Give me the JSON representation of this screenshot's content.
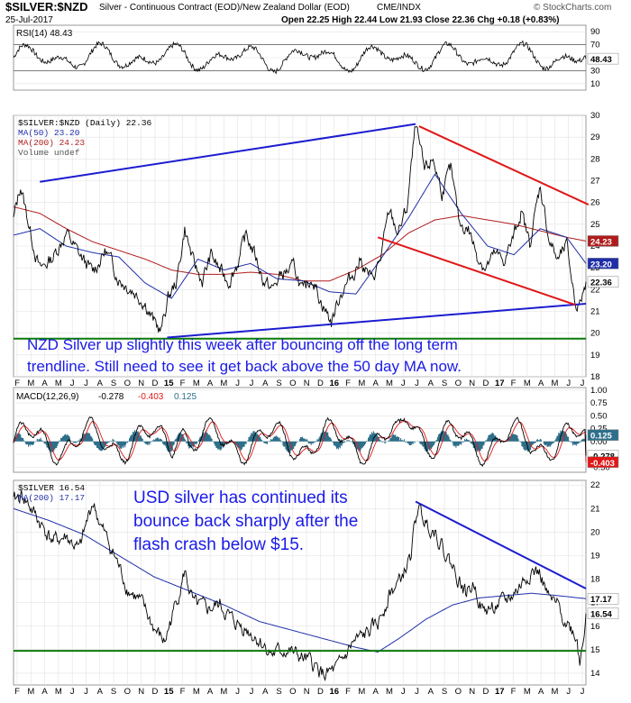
{
  "header": {
    "symbol_title": "$SILVER:$NZD",
    "description": "Silver - Continuous Contract (EOD)/New Zealand Dollar (EOD)",
    "exchange": "CME/INDX",
    "date": "25-Jul-2017",
    "ohlc": "Open 22.25  High 22.44  Low 21.93  Close 22.36  Chg +0.18 (+0.83%)",
    "attribution": "© StockCharts.com"
  },
  "colors": {
    "price": "#000000",
    "ma50": "#1f2fa8",
    "ma200": "#b01c1c",
    "trend_blue": "#1c1cd0",
    "trend_red": "#e01818",
    "support_green": "#0a7a0a",
    "histogram": "#2e6f8a",
    "annotation": "#1a1ae8"
  },
  "chart_data": [
    {
      "type": "line",
      "panel": "rsi",
      "legend": "RSI(14) 48.43",
      "y_ticks": [
        10,
        30,
        50,
        70,
        90
      ],
      "ylim": [
        0,
        100
      ],
      "reference_lines": [
        30,
        70
      ],
      "last_value": 48.43,
      "last_label": "48.43"
    },
    {
      "type": "line",
      "panel": "silver_nzd",
      "legend": [
        "$SILVER:$NZD (Daily) 22.36",
        "MA(50) 23.20",
        "MA(200) 24.23",
        "Volume undef"
      ],
      "ylim": [
        18,
        30
      ],
      "y_ticks": [
        18,
        19,
        20,
        21,
        22,
        23,
        24,
        25,
        26,
        27,
        28,
        29,
        30
      ],
      "x_ticks": [
        "F",
        "M",
        "A",
        "M",
        "J",
        "J",
        "A",
        "S",
        "O",
        "N",
        "D",
        "15",
        "F",
        "M",
        "A",
        "M",
        "J",
        "J",
        "A",
        "S",
        "O",
        "N",
        "D",
        "16",
        "F",
        "M",
        "A",
        "M",
        "J",
        "J",
        "A",
        "S",
        "O",
        "N",
        "D",
        "17",
        "F",
        "M",
        "A",
        "M",
        "J",
        "J"
      ],
      "series": [
        {
          "name": "$SILVER:$NZD",
          "points": [
            [
              0,
              25.2
            ],
            [
              8,
              26.8
            ],
            [
              20,
              24.5
            ],
            [
              30,
              22.9
            ],
            [
              45,
              23.5
            ],
            [
              60,
              24.6
            ],
            [
              75,
              23.6
            ],
            [
              90,
              22.8
            ],
            [
              105,
              23.8
            ],
            [
              120,
              22.5
            ],
            [
              135,
              22.0
            ],
            [
              150,
              21.4
            ],
            [
              160,
              20.5
            ],
            [
              168,
              20.1
            ],
            [
              176,
              21.6
            ],
            [
              186,
              22.4
            ],
            [
              195,
              24.8
            ],
            [
              205,
              23.2
            ],
            [
              215,
              22.4
            ],
            [
              225,
              23.6
            ],
            [
              235,
              22.9
            ],
            [
              245,
              22.4
            ],
            [
              255,
              23.2
            ],
            [
              265,
              24.5
            ],
            [
              275,
              23.6
            ],
            [
              285,
              22.4
            ],
            [
              295,
              22.0
            ],
            [
              305,
              22.7
            ],
            [
              320,
              23.0
            ],
            [
              330,
              21.8
            ],
            [
              340,
              22.6
            ],
            [
              350,
              21.5
            ],
            [
              362,
              20.5
            ],
            [
              372,
              21.8
            ],
            [
              385,
              22.6
            ],
            [
              395,
              23.4
            ],
            [
              408,
              22.4
            ],
            [
              418,
              23.4
            ],
            [
              428,
              25.6
            ],
            [
              438,
              24.6
            ],
            [
              448,
              25.7
            ],
            [
              458,
              29.5
            ],
            [
              468,
              27.4
            ],
            [
              478,
              28.0
            ],
            [
              488,
              26.5
            ],
            [
              498,
              27.5
            ],
            [
              508,
              25.0
            ],
            [
              518,
              24.8
            ],
            [
              528,
              23.6
            ],
            [
              538,
              23.0
            ],
            [
              548,
              23.6
            ],
            [
              558,
              23.3
            ],
            [
              568,
              24.2
            ],
            [
              578,
              25.6
            ],
            [
              588,
              24.1
            ],
            [
              600,
              26.8
            ],
            [
              610,
              24.3
            ],
            [
              620,
              23.3
            ],
            [
              630,
              24.0
            ],
            [
              640,
              21.4
            ],
            [
              645,
              21.3
            ],
            [
              652,
              22.36
            ]
          ]
        },
        {
          "name": "MA(50)",
          "points": [
            [
              0,
              24.5
            ],
            [
              30,
              24.8
            ],
            [
              60,
              24.0
            ],
            [
              90,
              23.7
            ],
            [
              120,
              23.5
            ],
            [
              150,
              22.3
            ],
            [
              180,
              21.6
            ],
            [
              210,
              23.4
            ],
            [
              240,
              22.9
            ],
            [
              270,
              23.2
            ],
            [
              300,
              22.5
            ],
            [
              330,
              22.4
            ],
            [
              360,
              21.9
            ],
            [
              390,
              21.8
            ],
            [
              420,
              23.5
            ],
            [
              450,
              25.3
            ],
            [
              480,
              27.3
            ],
            [
              510,
              25.5
            ],
            [
              540,
              24.0
            ],
            [
              570,
              23.6
            ],
            [
              600,
              24.8
            ],
            [
              630,
              24.4
            ],
            [
              652,
              23.2
            ]
          ]
        },
        {
          "name": "MA(200)",
          "points": [
            [
              0,
              25.8
            ],
            [
              30,
              25.5
            ],
            [
              60,
              24.8
            ],
            [
              90,
              24.2
            ],
            [
              120,
              23.8
            ],
            [
              150,
              23.4
            ],
            [
              180,
              22.9
            ],
            [
              210,
              22.7
            ],
            [
              240,
              22.7
            ],
            [
              270,
              22.8
            ],
            [
              300,
              22.7
            ],
            [
              330,
              22.4
            ],
            [
              360,
              22.4
            ],
            [
              390,
              22.9
            ],
            [
              420,
              23.6
            ],
            [
              450,
              24.6
            ],
            [
              480,
              25.2
            ],
            [
              510,
              25.4
            ],
            [
              540,
              25.2
            ],
            [
              570,
              25.0
            ],
            [
              600,
              24.7
            ],
            [
              630,
              24.4
            ],
            [
              652,
              24.23
            ]
          ]
        }
      ],
      "last_labels": [
        "24.23",
        "23.20",
        "22.36"
      ],
      "trendlines": [
        {
          "color": "blue",
          "from": [
            30,
            26.95
          ],
          "to": [
            458,
            29.6
          ]
        },
        {
          "color": "blue",
          "from": [
            175,
            19.8
          ],
          "to": [
            652,
            21.35
          ]
        },
        {
          "color": "red",
          "from": [
            462,
            29.5
          ],
          "to": [
            655,
            25.9
          ]
        },
        {
          "color": "red",
          "from": [
            415,
            24.4
          ],
          "to": [
            640,
            21.3
          ]
        }
      ],
      "horizontal_support": 19.75,
      "annotation": [
        "NZD Silver up slightly this week after bouncing off the long term",
        "trendline. Still need to see it get back above the 50 day MA now."
      ]
    },
    {
      "type": "line",
      "panel": "macd",
      "legend": [
        "MACD(12,26,9)",
        "-0.278",
        "-0.403",
        "0.125"
      ],
      "y_ticks": [
        1.0,
        0.75,
        0.5,
        0.25,
        0.0,
        -0.25,
        -0.5
      ],
      "y_tick_labels": [
        "1.00",
        "0.75",
        "0.50",
        "0.25",
        "0.00",
        "-0.25",
        "-0.50"
      ],
      "ylim": [
        -0.6,
        1.05
      ],
      "last_labels": [
        "0.125",
        "-0.278",
        "-0.403"
      ]
    },
    {
      "type": "line",
      "panel": "silver_usd",
      "legend": [
        "$SILVER 16.54",
        "MA(200) 17.17"
      ],
      "ylim": [
        13.5,
        22.2
      ],
      "y_ticks": [
        14,
        15,
        16,
        17,
        18,
        19,
        20,
        21,
        22
      ],
      "x_ticks": [
        "F",
        "M",
        "A",
        "M",
        "J",
        "J",
        "A",
        "S",
        "O",
        "N",
        "D",
        "15",
        "F",
        "M",
        "A",
        "M",
        "J",
        "J",
        "A",
        "S",
        "O",
        "N",
        "D",
        "16",
        "F",
        "M",
        "A",
        "M",
        "J",
        "J",
        "A",
        "S",
        "O",
        "N",
        "D",
        "17",
        "F",
        "M",
        "A",
        "M",
        "J",
        "J"
      ],
      "series": [
        {
          "name": "$SILVER",
          "points": [
            [
              0,
              21.3
            ],
            [
              10,
              21.6
            ],
            [
              20,
              21.0
            ],
            [
              30,
              20.4
            ],
            [
              45,
              19.6
            ],
            [
              60,
              19.8
            ],
            [
              75,
              19.2
            ],
            [
              90,
              21.3
            ],
            [
              100,
              20.2
            ],
            [
              115,
              19.0
            ],
            [
              130,
              17.6
            ],
            [
              145,
              17.0
            ],
            [
              160,
              15.9
            ],
            [
              172,
              15.3
            ],
            [
              182,
              16.6
            ],
            [
              195,
              18.3
            ],
            [
              205,
              16.9
            ],
            [
              220,
              16.7
            ],
            [
              235,
              16.9
            ],
            [
              250,
              16.2
            ],
            [
              265,
              15.9
            ],
            [
              280,
              15.4
            ],
            [
              295,
              14.8
            ],
            [
              310,
              15.0
            ],
            [
              325,
              14.7
            ],
            [
              340,
              14.4
            ],
            [
              355,
              13.9
            ],
            [
              370,
              14.2
            ],
            [
              385,
              15.2
            ],
            [
              400,
              15.6
            ],
            [
              415,
              16.1
            ],
            [
              428,
              17.4
            ],
            [
              440,
              17.9
            ],
            [
              452,
              18.9
            ],
            [
              460,
              21.0
            ],
            [
              470,
              20.4
            ],
            [
              480,
              20.1
            ],
            [
              492,
              19.1
            ],
            [
              505,
              18.2
            ],
            [
              515,
              17.4
            ],
            [
              525,
              17.8
            ],
            [
              535,
              16.6
            ],
            [
              545,
              16.8
            ],
            [
              560,
              17.0
            ],
            [
              575,
              17.6
            ],
            [
              590,
              18.4
            ],
            [
              600,
              18.2
            ],
            [
              610,
              17.1
            ],
            [
              620,
              16.8
            ],
            [
              630,
              16.2
            ],
            [
              642,
              15.5
            ],
            [
              645,
              14.4
            ],
            [
              652,
              16.54
            ]
          ]
        },
        {
          "name": "MA(200)",
          "points": [
            [
              0,
              21.0
            ],
            [
              40,
              20.5
            ],
            [
              80,
              19.9
            ],
            [
              120,
              19.0
            ],
            [
              160,
              18.1
            ],
            [
              200,
              17.5
            ],
            [
              240,
              16.9
            ],
            [
              280,
              16.2
            ],
            [
              320,
              15.8
            ],
            [
              360,
              15.4
            ],
            [
              390,
              15.1
            ],
            [
              415,
              14.9
            ],
            [
              440,
              15.5
            ],
            [
              470,
              16.3
            ],
            [
              500,
              16.9
            ],
            [
              530,
              17.2
            ],
            [
              560,
              17.3
            ],
            [
              590,
              17.4
            ],
            [
              620,
              17.3
            ],
            [
              652,
              17.17
            ]
          ]
        }
      ],
      "last_labels": [
        "17.17",
        "16.54"
      ],
      "trendlines": [
        {
          "color": "blue",
          "from": [
            458,
            21.3
          ],
          "to": [
            652,
            17.6
          ]
        }
      ],
      "horizontal_support": 14.95,
      "annotation": [
        "USD silver has continued its",
        "bounce back sharply after the",
        "flash crash below $15."
      ]
    }
  ]
}
